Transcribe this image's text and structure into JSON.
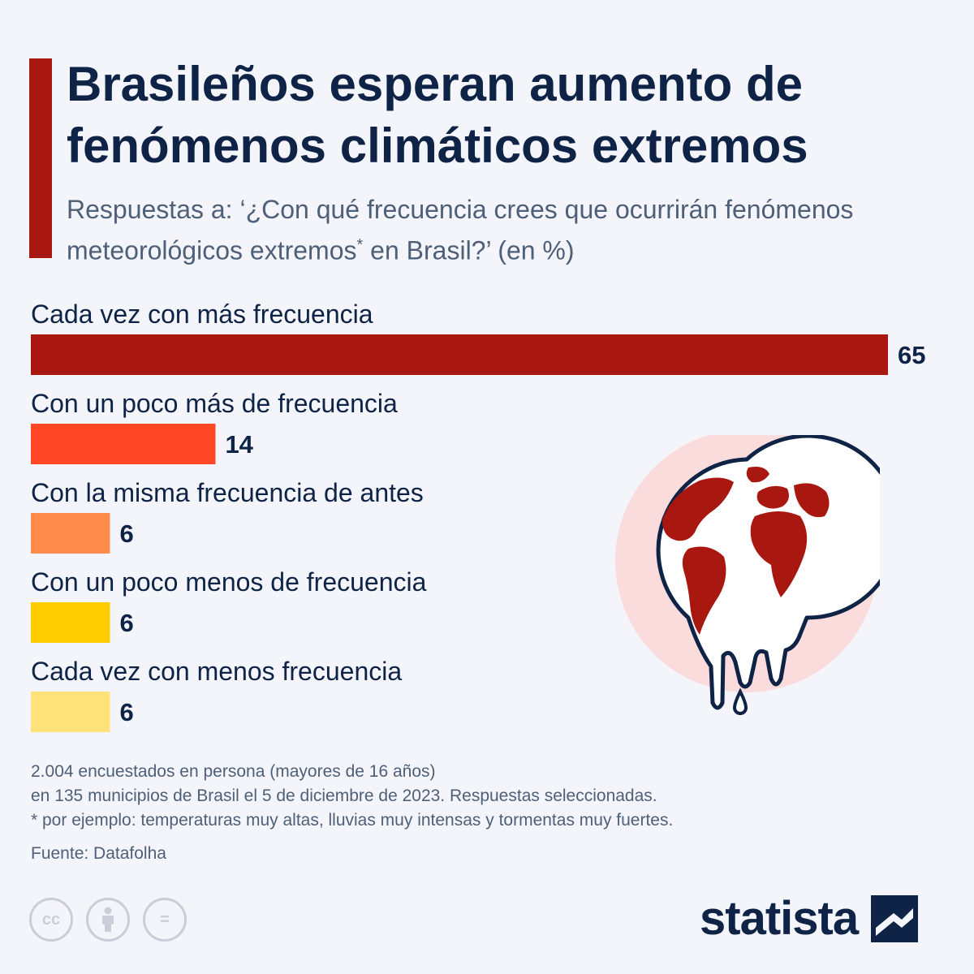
{
  "header": {
    "title": "Brasileños esperan aumento de fenómenos climáticos extremos",
    "subtitle_before": "Respuestas a: ‘¿Con qué frecuencia crees que ocurrirán fenómenos meteorológicos extremos",
    "subtitle_mark": "*",
    "subtitle_after": " en Brasil?’ (en %)"
  },
  "chart_data": {
    "type": "bar",
    "orientation": "horizontal",
    "categories": [
      "Cada vez con más frecuencia",
      "Con un poco más de frecuencia",
      "Con la misma frecuencia de antes",
      "Con un poco menos de frecuencia",
      "Cada vez con menos frecuencia"
    ],
    "values": [
      65,
      14,
      6,
      6,
      6
    ],
    "value_labels": [
      "65",
      "14",
      "6",
      "6",
      "6"
    ],
    "colors": [
      "#a81811",
      "#ff4726",
      "#ff8c4b",
      "#ffcc00",
      "#ffe27a"
    ],
    "xlim": [
      0,
      65
    ],
    "grid": false,
    "legend": "none"
  },
  "notes": {
    "line1": "2.004 encuestados en persona (mayores de 16 años)",
    "line2": "en 135 municipios de Brasil el 5 de diciembre de 2023. Respuestas seleccionadas.",
    "line3": "* por ejemplo: temperaturas muy altas, lluvias muy intensas y tormentas muy fuertes."
  },
  "source": "Fuente: Datafolha",
  "license": {
    "cc_icon": "cc-icon",
    "by_icon": "attribution-icon",
    "nd_icon": "no-derivatives-icon",
    "cc_text": "cc",
    "nd_text": "="
  },
  "brand": {
    "name": "statista",
    "logo_icon": "statista-logo-icon"
  },
  "illustration": {
    "icon": "melting-globe-icon"
  },
  "colors": {
    "accent": "#a81811",
    "navy": "#0e2346",
    "text_gray": "#4e5f78",
    "background": "#f4f5fa",
    "globe_halo": "#fadcdc"
  }
}
